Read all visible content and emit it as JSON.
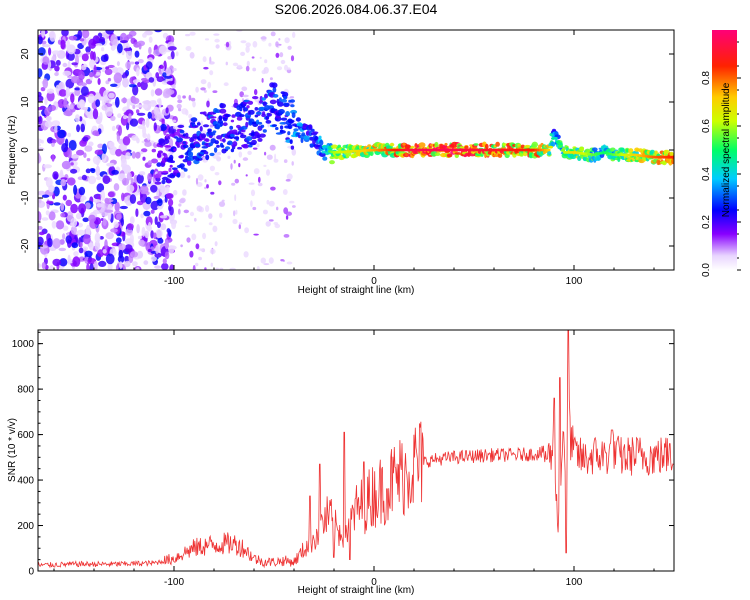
{
  "figure_title": "S206.2026.084.06.37.E04",
  "chart_data": [
    {
      "type": "heatmap",
      "xlabel": "Height of straight line (km)",
      "ylabel": "Frequency (Hz)",
      "xlim": [
        -168,
        150
      ],
      "ylim": [
        -25,
        25
      ],
      "x_ticks": [
        -100,
        0,
        100
      ],
      "y_ticks": [
        -20,
        -10,
        0,
        10,
        20
      ],
      "colorbar": {
        "label": "Normalized spectral amplitude",
        "range": [
          0,
          1
        ],
        "ticks": [
          0.0,
          0.2,
          0.4,
          0.6,
          0.8
        ],
        "colors": [
          "#ffffff",
          "#e0c0ff",
          "#8000ff",
          "#0000ff",
          "#00c0ff",
          "#00ff80",
          "#ffff00",
          "#ff8000",
          "#ff0000",
          "#ff0080"
        ]
      },
      "ridge": {
        "x": [
          -100,
          -90,
          -80,
          -70,
          -60,
          -50,
          -45,
          -40,
          -35,
          -30,
          -25,
          -20,
          0,
          20,
          40,
          60,
          80,
          88,
          90,
          95,
          100,
          110,
          115,
          120,
          130,
          140,
          150
        ],
        "y": [
          -1,
          2,
          4,
          5,
          6,
          9,
          7,
          5,
          4,
          2,
          0,
          -0.5,
          0,
          0,
          0,
          0,
          0,
          0,
          3,
          -0.5,
          -0.5,
          -1,
          -0.5,
          -1,
          -1,
          -1.5,
          -1.5
        ],
        "amplitude": [
          0.25,
          0.3,
          0.3,
          0.3,
          0.3,
          0.35,
          0.3,
          0.4,
          0.35,
          0.3,
          0.45,
          0.6,
          0.75,
          0.95,
          0.95,
          0.9,
          0.85,
          0.7,
          0.4,
          0.6,
          0.7,
          0.55,
          0.5,
          0.55,
          0.7,
          0.8,
          0.85
        ]
      }
    },
    {
      "type": "line",
      "xlabel": "Height of straight line (km)",
      "ylabel": "SNR (10 * v/v)",
      "xlim": [
        -168,
        150
      ],
      "ylim": [
        0,
        1060
      ],
      "x_ticks": [
        -100,
        0,
        100
      ],
      "y_ticks": [
        0,
        200,
        400,
        600,
        800,
        1000
      ],
      "color": "#ee3333",
      "series": [
        {
          "x": [
            -168,
            -150,
            -130,
            -110,
            -100,
            -95,
            -90,
            -85,
            -80,
            -75,
            -70,
            -65,
            -60,
            -55,
            -50,
            -45,
            -40,
            -35,
            -32,
            -30,
            -28,
            -25,
            -22,
            -20,
            -18,
            -15,
            -12,
            -10,
            -8,
            -5,
            -2,
            0,
            5,
            10,
            15,
            20,
            25,
            30,
            40,
            50,
            60,
            70,
            80,
            85,
            88,
            90,
            92,
            94,
            95,
            96,
            97,
            98,
            100,
            105,
            110,
            115,
            120,
            125,
            130,
            140,
            150
          ],
          "y": [
            25,
            30,
            30,
            35,
            55,
            80,
            100,
            110,
            115,
            120,
            120,
            100,
            55,
            40,
            40,
            45,
            40,
            95,
            130,
            150,
            170,
            220,
            240,
            190,
            180,
            170,
            210,
            250,
            280,
            290,
            320,
            340,
            360,
            400,
            430,
            465,
            480,
            490,
            500,
            505,
            510,
            510,
            515,
            520,
            500,
            560,
            180,
            520,
            700,
            120,
            900,
            600,
            520,
            490,
            510,
            505,
            515,
            500,
            510,
            505,
            510
          ],
          "peaks": [
            {
              "x": -32,
              "y": 330
            },
            {
              "x": -27,
              "y": 470
            },
            {
              "x": -15,
              "y": 610
            },
            {
              "x": -5,
              "y": 480
            },
            {
              "x": 90,
              "y": 760
            },
            {
              "x": 93,
              "y": 850
            },
            {
              "x": 97,
              "y": 1060
            },
            {
              "x": 119,
              "y": 620
            },
            {
              "x": 148,
              "y": 560
            }
          ],
          "dips": [
            {
              "x": -12,
              "y": 50
            },
            {
              "x": -20,
              "y": 60
            },
            {
              "x": 96,
              "y": 80
            }
          ]
        }
      ]
    }
  ]
}
